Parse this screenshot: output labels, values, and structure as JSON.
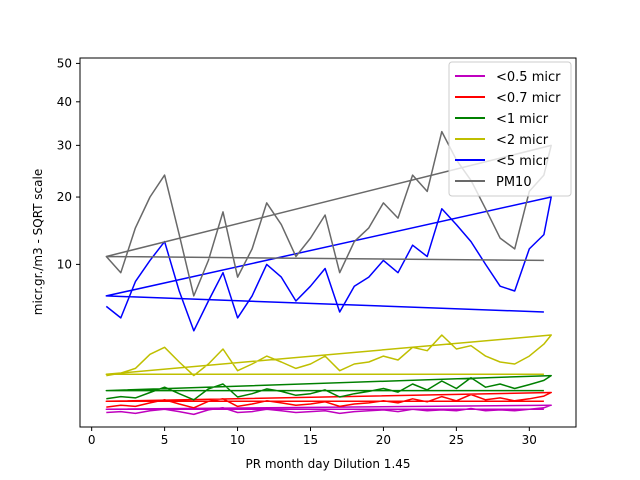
{
  "chart_data": {
    "type": "line",
    "title": "",
    "xlabel": "PR month day  Dilution 1.45",
    "ylabel": "micr.gr./m3 - SQRT scale",
    "yscale": "sqrt",
    "xlim": [
      -0.8,
      33.2
    ],
    "ylim": [
      0,
      51.5
    ],
    "xticks": [
      0,
      5,
      10,
      15,
      20,
      25,
      30
    ],
    "yticks": [
      10,
      20,
      30,
      40,
      50
    ],
    "grid": false,
    "legend_position": "top-right",
    "series": [
      {
        "name": "<0.5 micr",
        "color": "#bf00bf",
        "x": [
          1,
          2,
          3,
          4,
          5,
          6,
          7,
          8,
          9,
          10,
          11,
          12,
          13,
          14,
          15,
          16,
          17,
          18,
          19,
          20,
          21,
          22,
          23,
          24,
          25,
          26,
          27,
          28,
          29,
          30,
          31,
          31.5,
          1,
          31
        ],
        "y": [
          0.08,
          0.09,
          0.07,
          0.1,
          0.12,
          0.09,
          0.06,
          0.11,
          0.14,
          0.08,
          0.09,
          0.12,
          0.1,
          0.08,
          0.09,
          0.1,
          0.07,
          0.09,
          0.1,
          0.11,
          0.09,
          0.12,
          0.1,
          0.11,
          0.1,
          0.13,
          0.1,
          0.11,
          0.1,
          0.12,
          0.14,
          0.18,
          0.12,
          0.12
        ]
      },
      {
        "name": "<0.7 micr",
        "color": "#ff0000",
        "x": [
          1,
          2,
          3,
          4,
          5,
          6,
          7,
          8,
          9,
          10,
          11,
          12,
          13,
          14,
          15,
          16,
          17,
          18,
          19,
          20,
          21,
          22,
          23,
          24,
          25,
          26,
          27,
          28,
          29,
          30,
          31,
          31.5,
          1,
          31
        ],
        "y": [
          0.15,
          0.18,
          0.16,
          0.22,
          0.28,
          0.2,
          0.14,
          0.25,
          0.3,
          0.16,
          0.2,
          0.26,
          0.22,
          0.18,
          0.2,
          0.24,
          0.16,
          0.2,
          0.22,
          0.26,
          0.22,
          0.3,
          0.24,
          0.35,
          0.26,
          0.4,
          0.28,
          0.32,
          0.26,
          0.3,
          0.36,
          0.45,
          0.25,
          0.25
        ]
      },
      {
        "name": "<1 micr",
        "color": "#008000",
        "x": [
          1,
          2,
          3,
          4,
          5,
          6,
          7,
          8,
          9,
          10,
          11,
          12,
          13,
          14,
          15,
          16,
          17,
          18,
          19,
          20,
          21,
          22,
          23,
          24,
          25,
          26,
          27,
          28,
          29,
          30,
          31,
          31.5,
          1,
          31
        ],
        "y": [
          0.3,
          0.35,
          0.32,
          0.45,
          0.6,
          0.42,
          0.28,
          0.55,
          0.7,
          0.34,
          0.42,
          0.55,
          0.48,
          0.38,
          0.42,
          0.52,
          0.34,
          0.42,
          0.48,
          0.56,
          0.46,
          0.7,
          0.52,
          0.8,
          0.56,
          0.92,
          0.6,
          0.7,
          0.56,
          0.68,
          0.82,
          1.0,
          0.5,
          0.5
        ]
      },
      {
        "name": "<2 micr",
        "color": "#bfbf00",
        "x": [
          1,
          2,
          3,
          4,
          5,
          6,
          7,
          8,
          9,
          10,
          11,
          12,
          13,
          14,
          15,
          16,
          17,
          18,
          19,
          20,
          21,
          22,
          23,
          24,
          25,
          26,
          27,
          28,
          29,
          30,
          31,
          31.5,
          1,
          31
        ],
        "y": [
          1.0,
          1.1,
          1.3,
          2.0,
          2.4,
          1.6,
          1.0,
          1.5,
          2.3,
          1.2,
          1.5,
          1.9,
          1.6,
          1.3,
          1.5,
          1.9,
          1.2,
          1.5,
          1.6,
          1.9,
          1.7,
          2.4,
          2.2,
          3.2,
          2.3,
          2.5,
          1.9,
          1.6,
          1.5,
          1.9,
          2.6,
          3.2,
          1.05,
          1.05
        ]
      },
      {
        "name": "<5 micr",
        "color": "#0000ff",
        "x": [
          1,
          2,
          3,
          4,
          5,
          6,
          7,
          8,
          9,
          10,
          11,
          12,
          13,
          14,
          15,
          16,
          17,
          18,
          19,
          20,
          21,
          22,
          23,
          24,
          25,
          26,
          27,
          28,
          29,
          30,
          31,
          31.5,
          1,
          31
        ],
        "y": [
          5.5,
          4.5,
          8.0,
          10.5,
          13.0,
          7.0,
          3.5,
          6.0,
          9.0,
          4.5,
          6.5,
          10.0,
          8.5,
          6.0,
          7.5,
          9.5,
          5.0,
          7.5,
          8.5,
          10.5,
          9.0,
          12.5,
          11.0,
          18.0,
          15.5,
          13.0,
          10.0,
          7.5,
          7.0,
          12.0,
          14.0,
          20.0,
          6.5,
          5.0
        ]
      },
      {
        "name": "PM10",
        "color": "#696969",
        "x": [
          1,
          2,
          3,
          4,
          5,
          6,
          7,
          8,
          9,
          10,
          11,
          12,
          13,
          14,
          15,
          16,
          17,
          18,
          19,
          20,
          21,
          22,
          23,
          24,
          25,
          26,
          27,
          28,
          29,
          30,
          31,
          31.5,
          1,
          31
        ],
        "y": [
          11.0,
          9.0,
          15.0,
          20.0,
          24.0,
          14.0,
          6.5,
          10.5,
          17.5,
          8.5,
          12.0,
          19.0,
          15.5,
          11.0,
          13.5,
          17.0,
          9.0,
          13.0,
          15.0,
          19.0,
          16.5,
          24.0,
          21.0,
          33.0,
          27.0,
          23.0,
          18.0,
          13.5,
          12.0,
          21.0,
          24.0,
          30.0,
          11.0,
          10.5
        ]
      }
    ]
  }
}
